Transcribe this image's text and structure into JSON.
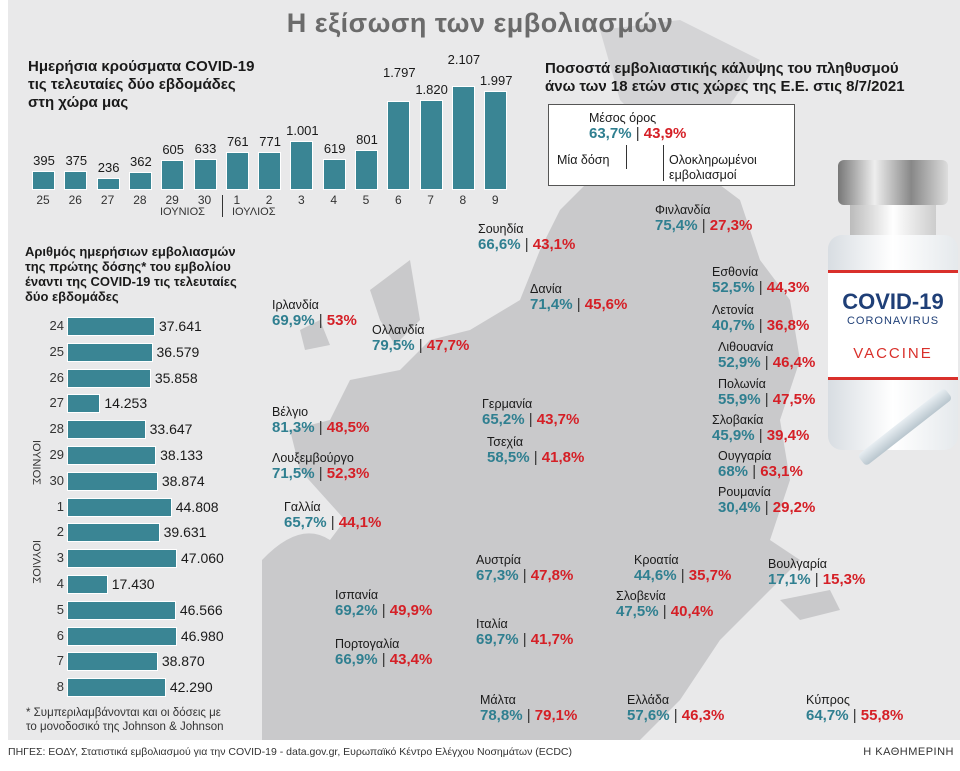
{
  "title": "Η εξίσωση των εμβολιασμών",
  "colors": {
    "bar": "#3a8594",
    "first_dose": "#2f7f90",
    "full": "#d51f26",
    "background": "#e9e9ea"
  },
  "chart_data": [
    {
      "type": "bar",
      "title": "Ημερήσια κρούσματα COVID-19 τις τελευταίες δύο εβδομάδες στη χώρα μας",
      "title_lines": [
        "Ημερήσια κρούσματα COVID-19",
        "τις τελευταίες δύο εβδομάδες",
        "στη χώρα μας"
      ],
      "categories": [
        "25",
        "26",
        "27",
        "28",
        "29",
        "30",
        "1",
        "2",
        "3",
        "4",
        "5",
        "6",
        "7",
        "8",
        "9"
      ],
      "values": [
        395,
        375,
        236,
        362,
        605,
        633,
        761,
        771,
        1001,
        619,
        801,
        1797,
        1820,
        2107,
        1997
      ],
      "value_labels": [
        "395",
        "375",
        "236",
        "362",
        "605",
        "633",
        "761",
        "771",
        "1.001",
        "619",
        "801",
        "1.797",
        "1.820",
        "2.107",
        "1.997"
      ],
      "month_labels": [
        "ΙΟΥΝΙΟΣ",
        "ΙΟΥΛΙΟΣ"
      ]
    },
    {
      "type": "bar",
      "orientation": "horizontal",
      "title": "Αριθμός ημερήσιων εμβολιασμών της πρώτης δόσης* του εμβολίου έναντι της COVID-19 τις τελευταίες δύο εβδομάδες",
      "title_lines": [
        "Αριθμός ημερήσιων εμβολιασμών",
        "της πρώτης δόσης* του εμβολίου",
        "έναντι της COVID-19 τις τελευταίες",
        "δύο εβδομάδες"
      ],
      "categories": [
        "24",
        "25",
        "26",
        "27",
        "28",
        "29",
        "30",
        "1",
        "2",
        "3",
        "4",
        "5",
        "6",
        "7",
        "8"
      ],
      "values": [
        37641,
        36579,
        35858,
        14253,
        33647,
        38133,
        38874,
        44808,
        39631,
        47060,
        17430,
        46566,
        46980,
        38870,
        42290
      ],
      "value_labels": [
        "37.641",
        "36.579",
        "35.858",
        "14.253",
        "33.647",
        "38.133",
        "38.874",
        "44.808",
        "39.631",
        "47.060",
        "17.430",
        "46.566",
        "46.980",
        "38.870",
        "42.290"
      ],
      "month_labels": [
        "ΙΟΥΝΙΟΣ",
        "ΙΟΥΛΙΟΣ"
      ],
      "footnote_lines": [
        "* Συμπεριλαμβάνονται και οι δόσεις με",
        "το μονοδοσικό της Johnson & Johnson"
      ]
    },
    {
      "type": "table",
      "title": "Ποσοστά εμβολιαστικής κάλυψης του πληθυσμού άνω των 18 ετών στις χώρες της Ε.Ε. στις 8/7/2021",
      "title_lines": [
        "Ποσοστά εμβολιαστικής κάλυψης του πληθυσμού",
        "άνω των 18 ετών στις χώρες της Ε.Ε. στις 8/7/2021"
      ],
      "legend": {
        "average_label": "Μέσος όρος",
        "avg_first": "63,7%",
        "avg_full": "43,9%",
        "first_label": "Μία δόση",
        "full_label_lines": [
          "Ολοκληρωμένοι",
          "εμβολιασμοί"
        ]
      },
      "countries": [
        {
          "name": "Φινλανδία",
          "first": "75,4%",
          "full": "27,3%"
        },
        {
          "name": "Σουηδία",
          "first": "66,6%",
          "full": "43,1%"
        },
        {
          "name": "Δανία",
          "first": "71,4%",
          "full": "45,6%"
        },
        {
          "name": "Ιρλανδία",
          "first": "69,9%",
          "full": "53%"
        },
        {
          "name": "Ολλανδία",
          "first": "79,5%",
          "full": "47,7%"
        },
        {
          "name": "Εσθονία",
          "first": "52,5%",
          "full": "44,3%"
        },
        {
          "name": "Λετονία",
          "first": "40,7%",
          "full": "36,8%"
        },
        {
          "name": "Λιθουανία",
          "first": "52,9%",
          "full": "46,4%"
        },
        {
          "name": "Πολωνία",
          "first": "55,9%",
          "full": "47,5%"
        },
        {
          "name": "Σλοβακία",
          "first": "45,9%",
          "full": "39,4%"
        },
        {
          "name": "Ουγγαρία",
          "first": "68%",
          "full": "63,1%"
        },
        {
          "name": "Ρουμανία",
          "first": "30,4%",
          "full": "29,2%"
        },
        {
          "name": "Γερμανία",
          "first": "65,2%",
          "full": "43,7%"
        },
        {
          "name": "Τσεχία",
          "first": "58,5%",
          "full": "41,8%"
        },
        {
          "name": "Βέλγιο",
          "first": "81,3%",
          "full": "48,5%"
        },
        {
          "name": "Λουξεμβούργο",
          "first": "71,5%",
          "full": "52,3%"
        },
        {
          "name": "Γαλλία",
          "first": "65,7%",
          "full": "44,1%"
        },
        {
          "name": "Ισπανία",
          "first": "69,2%",
          "full": "49,9%"
        },
        {
          "name": "Πορτογαλία",
          "first": "66,9%",
          "full": "43,4%"
        },
        {
          "name": "Αυστρία",
          "first": "67,3%",
          "full": "47,8%"
        },
        {
          "name": "Κροατία",
          "first": "44,6%",
          "full": "35,7%"
        },
        {
          "name": "Σλοβενία",
          "first": "47,5%",
          "full": "40,4%"
        },
        {
          "name": "Βουλγαρία",
          "first": "17,1%",
          "full": "15,3%"
        },
        {
          "name": "Ιταλία",
          "first": "69,7%",
          "full": "41,7%"
        },
        {
          "name": "Μάλτα",
          "first": "78,8%",
          "full": "79,1%"
        },
        {
          "name": "Ελλάδα",
          "first": "57,6%",
          "full": "46,3%"
        },
        {
          "name": "Κύπρος",
          "first": "64,7%",
          "full": "55,8%"
        }
      ]
    }
  ],
  "vaccine": {
    "line1": "COVID-19",
    "line2": "CORONAVIRUS",
    "line3": "VACCINE"
  },
  "sources": "ΠΗΓΕΣ: ΕΟΔΥ, Στατιστικά εμβολιασμού για την COVID-19 - data.gov.gr, Ευρωπαϊκό Κέντρο Ελέγχου Νοσημάτων (ECDC)",
  "brand": "Η ΚΑΘΗΜΕΡΙΝΗ"
}
